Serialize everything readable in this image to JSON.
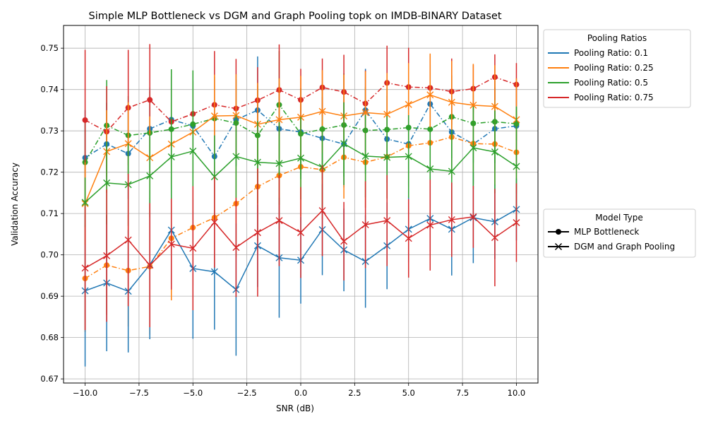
{
  "chart_data": {
    "type": "line",
    "title": "Simple MLP Bottleneck vs DGM and Graph Pooling topk on IMDB-BINARY Dataset",
    "xlabel": "SNR (dB)",
    "ylabel": "Validation Accuracy",
    "xlim": [
      -11,
      11
    ],
    "ylim": [
      0.669,
      0.7555
    ],
    "x": [
      -10,
      -9,
      -8,
      -7,
      -6,
      -5,
      -4,
      -3,
      -2,
      -1,
      0,
      1,
      2,
      3,
      4,
      5,
      6,
      7,
      8,
      9,
      10
    ],
    "xticks": [
      -10,
      -7.5,
      -5,
      -2.5,
      0,
      2.5,
      5,
      7.5,
      10
    ],
    "xtick_labels": [
      "−10.0",
      "−7.5",
      "−5.0",
      "−2.5",
      "0.0",
      "2.5",
      "5.0",
      "7.5",
      "10.0"
    ],
    "yticks": [
      0.67,
      0.68,
      0.69,
      0.7,
      0.71,
      0.72,
      0.73,
      0.74,
      0.75
    ],
    "ytick_labels": [
      "0.67",
      "0.68",
      "0.69",
      "0.70",
      "0.71",
      "0.72",
      "0.73",
      "0.74",
      "0.75"
    ],
    "grid": true,
    "legend_pooling": {
      "title": "Pooling Ratios",
      "placement": "outside-upper-right",
      "entries": [
        {
          "label": "Pooling Ratio: 0.1",
          "color": "#1f77b4"
        },
        {
          "label": "Pooling Ratio: 0.25",
          "color": "#ff7f0e"
        },
        {
          "label": "Pooling Ratio: 0.5",
          "color": "#2ca02c"
        },
        {
          "label": "Pooling Ratio: 0.75",
          "color": "#d62728"
        }
      ]
    },
    "legend_model": {
      "title": "Model Type",
      "placement": "outside-center-right",
      "entries": [
        {
          "label": "MLP Bottleneck",
          "marker": "circle",
          "linestyle": "dashdot"
        },
        {
          "label": "DGM and Graph Pooling",
          "marker": "x",
          "linestyle": "solid"
        }
      ]
    },
    "series": [
      {
        "ratio": "0.1",
        "model": "MLP Bottleneck",
        "color": "#1f77b4",
        "marker": "circle",
        "linestyle": "dashdot",
        "values": [
          0.7235,
          0.7268,
          0.7245,
          0.7305,
          0.7327,
          0.7312,
          0.7238,
          0.7327,
          0.735,
          0.7305,
          0.7297,
          0.7282,
          0.7268,
          0.735,
          0.728,
          0.7268,
          0.7365,
          0.7297,
          0.7268,
          0.7305,
          0.7312
        ],
        "err": [
          0.0115,
          0.01,
          0.011,
          0.01,
          0.0105,
          0.011,
          0.0105,
          0.011,
          0.013,
          0.011,
          0.0105,
          0.01,
          0.0105,
          0.01,
          0.0105,
          0.01,
          0.0095,
          0.01,
          0.0095,
          0.01,
          0.01
        ]
      },
      {
        "ratio": "0.25",
        "model": "MLP Bottleneck",
        "color": "#ff7f0e",
        "marker": "circle",
        "linestyle": "dashdot",
        "values": [
          0.6943,
          0.6975,
          0.6962,
          0.6972,
          0.704,
          0.7066,
          0.709,
          0.7124,
          0.7165,
          0.7192,
          0.7213,
          0.7206,
          0.7236,
          0.7224,
          0.7237,
          0.7264,
          0.7271,
          0.7285,
          0.7269,
          0.7268,
          0.7248
        ],
        "err": [
          0.013,
          0.012,
          0.0135,
          0.0165,
          0.015,
          0.014,
          0.0135,
          0.013,
          0.0135,
          0.013,
          0.012,
          0.012,
          0.01,
          0.011,
          0.01,
          0.01,
          0.01,
          0.01,
          0.01,
          0.01,
          0.01
        ]
      },
      {
        "ratio": "0.5",
        "model": "MLP Bottleneck",
        "color": "#2ca02c",
        "marker": "circle",
        "linestyle": "dashdot",
        "values": [
          0.7224,
          0.7313,
          0.7289,
          0.7295,
          0.7304,
          0.7316,
          0.733,
          0.7319,
          0.7289,
          0.7363,
          0.7293,
          0.7304,
          0.7314,
          0.7301,
          0.7303,
          0.7308,
          0.7304,
          0.7334,
          0.7318,
          0.7322,
          0.7317
        ],
        "err": [
          0.0105,
          0.011,
          0.0095,
          0.01,
          0.0145,
          0.013,
          0.01,
          0.0105,
          0.012,
          0.013,
          0.011,
          0.011,
          0.0125,
          0.0105,
          0.01,
          0.01,
          0.0095,
          0.01,
          0.0095,
          0.01,
          0.004
        ]
      },
      {
        "ratio": "0.75",
        "model": "MLP Bottleneck",
        "color": "#d62728",
        "marker": "circle",
        "linestyle": "dashdot",
        "values": [
          0.7326,
          0.7298,
          0.7356,
          0.7375,
          0.7322,
          0.7341,
          0.7363,
          0.7354,
          0.7374,
          0.7399,
          0.7375,
          0.7405,
          0.7394,
          0.7366,
          0.7416,
          0.7406,
          0.7404,
          0.7395,
          0.7402,
          0.743,
          0.7412
        ],
        "err": [
          0.017,
          0.011,
          0.014,
          0.0135,
          0.011,
          0.008,
          0.013,
          0.012,
          0.008,
          0.011,
          0.0075,
          0.007,
          0.009,
          0.008,
          0.009,
          0.0095,
          0.008,
          0.008,
          0.0058,
          0.0055,
          0.0052
        ]
      },
      {
        "ratio": "0.1",
        "model": "DGM and Graph Pooling",
        "color": "#1f77b4",
        "marker": "x",
        "linestyle": "solid",
        "values": [
          0.6913,
          0.6932,
          0.6912,
          0.6976,
          0.706,
          0.6967,
          0.6959,
          0.6916,
          0.7022,
          0.6993,
          0.6987,
          0.7061,
          0.7012,
          0.6984,
          0.7022,
          0.7062,
          0.7088,
          0.7062,
          0.709,
          0.708,
          0.711
        ],
        "err": [
          0.0183,
          0.0165,
          0.0148,
          0.018,
          0.013,
          0.017,
          0.014,
          0.016,
          0.01,
          0.0145,
          0.0105,
          0.011,
          0.01,
          0.0112,
          0.0105,
          0.008,
          0.008,
          0.0112,
          0.011,
          0.009,
          0.0075
        ]
      },
      {
        "ratio": "0.25",
        "model": "DGM and Graph Pooling",
        "color": "#ff7f0e",
        "marker": "x",
        "linestyle": "solid",
        "values": [
          0.7124,
          0.725,
          0.7269,
          0.7235,
          0.7268,
          0.7297,
          0.7336,
          0.7337,
          0.7316,
          0.7327,
          0.7333,
          0.7347,
          0.7336,
          0.7344,
          0.734,
          0.7364,
          0.7387,
          0.7369,
          0.7362,
          0.7359,
          0.7327
        ],
        "err": [
          0.01,
          0.01,
          0.01,
          0.01,
          0.01,
          0.01,
          0.01,
          0.01,
          0.01,
          0.01,
          0.01,
          0.01,
          0.01,
          0.01,
          0.01,
          0.01,
          0.01,
          0.01,
          0.01,
          0.01,
          0.01
        ]
      },
      {
        "ratio": "0.5",
        "model": "DGM and Graph Pooling",
        "color": "#2ca02c",
        "marker": "x",
        "linestyle": "solid",
        "values": [
          0.7127,
          0.7174,
          0.717,
          0.7191,
          0.7237,
          0.7251,
          0.7189,
          0.7238,
          0.7224,
          0.7221,
          0.7234,
          0.7212,
          0.7269,
          0.7239,
          0.7236,
          0.7238,
          0.7208,
          0.7202,
          0.7259,
          0.7249,
          0.7214
        ],
        "err": [
          0.006,
          0.01,
          0.01,
          0.01,
          0.021,
          0.0195,
          0.01,
          0.01,
          0.01,
          0.01,
          0.01,
          0.01,
          0.01,
          0.01,
          0.01,
          0.01,
          0.01,
          0.01,
          0.01,
          0.01,
          0.0145
        ]
      },
      {
        "ratio": "0.75",
        "model": "DGM and Graph Pooling",
        "color": "#d62728",
        "marker": "x",
        "linestyle": "solid",
        "values": [
          0.6968,
          0.6998,
          0.7036,
          0.6975,
          0.7026,
          0.7016,
          0.7079,
          0.7018,
          0.7054,
          0.7083,
          0.7054,
          0.7107,
          0.7033,
          0.7073,
          0.7083,
          0.704,
          0.7072,
          0.7085,
          0.7092,
          0.7042,
          0.7078
        ],
        "err": [
          0.015,
          0.016,
          0.016,
          0.015,
          0.011,
          0.015,
          0.011,
          0.012,
          0.0155,
          0.011,
          0.011,
          0.011,
          0.0095,
          0.0105,
          0.011,
          0.0095,
          0.011,
          0.009,
          0.0075,
          0.0118,
          0.0095
        ]
      }
    ]
  }
}
